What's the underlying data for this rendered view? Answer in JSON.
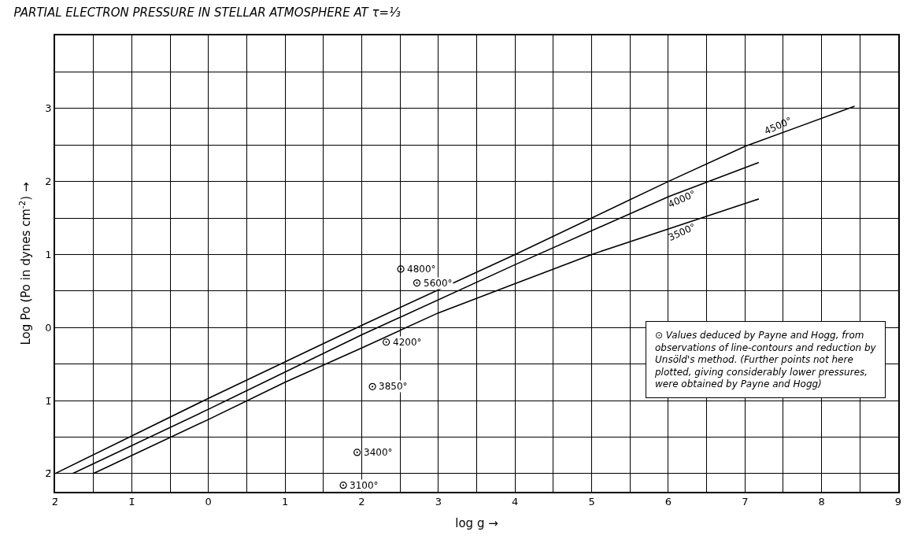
{
  "chart_data": {
    "type": "line",
    "title": "PARTIAL ELECTRON PRESSURE IN STELLAR ATMOSPHERE AT τ=⅓",
    "xlabel": "log g →",
    "ylabel": "Log Po (Po in dynes cm$^{-2}$) →",
    "annotations": [
      "⊙ Values deduced by Payne and Hogg, from observations of line-contours and reduction by Unsöld's method. (Further points not here plotted, giving considerably lower pressures, were obtained by Payne and Hogg)"
    ],
    "xlim": [
      -2,
      9
    ],
    "ylim": [
      -2.25,
      4
    ],
    "xticks": [
      {
        "value": -2,
        "label": "2̄"
      },
      {
        "value": -1.5,
        "label": null
      },
      {
        "value": -1,
        "label": "1̄"
      },
      {
        "value": -0.5,
        "label": null
      },
      0,
      {
        "value": 0.5,
        "label": null
      },
      1,
      {
        "value": 1.5,
        "label": null
      },
      2,
      {
        "value": 2.5,
        "label": null
      },
      3,
      {
        "value": 3.5,
        "label": null
      },
      4,
      {
        "value": 4.5,
        "label": null
      },
      5,
      {
        "value": 5.5,
        "label": null
      },
      6,
      {
        "value": 6.5,
        "label": null
      },
      7,
      {
        "value": 7.5,
        "label": null
      },
      8,
      {
        "value": 8.5,
        "label": null
      },
      9
    ],
    "yticks": [
      {
        "value": -2,
        "label": "2̄"
      },
      {
        "value": -1.5,
        "label": null
      },
      {
        "value": -1,
        "label": "1̄"
      },
      {
        "value": -0.5,
        "label": null
      },
      0,
      {
        "value": 0.5,
        "label": null
      },
      1,
      {
        "value": 1.5,
        "label": null
      },
      2,
      {
        "value": 2.5,
        "label": null
      },
      3,
      {
        "value": 3.5,
        "label": null
      },
      {
        "value": 4,
        "label": null
      }
    ],
    "grid": true,
    "series": [
      {
        "name": "4500°",
        "color": "#000000",
        "x": [
          -2,
          0,
          2,
          4,
          6,
          7,
          8.43
        ],
        "values": [
          -2,
          -0.97,
          0.03,
          1.0,
          2.0,
          2.48,
          3.03
        ]
      },
      {
        "name": "4000°",
        "color": "#000000",
        "x": [
          -1.77,
          0,
          2,
          4,
          6,
          7.18
        ],
        "values": [
          -2,
          -1.12,
          -0.1,
          0.86,
          1.79,
          2.26
        ]
      },
      {
        "name": "3500°",
        "color": "#000000",
        "x": [
          -1.5,
          0,
          1,
          2,
          3,
          4,
          5,
          6,
          7.18
        ],
        "values": [
          -2,
          -1.26,
          -0.75,
          -0.28,
          0.2,
          0.6,
          1.0,
          1.35,
          1.76
        ]
      },
      {
        "name": "4800°",
        "type": "scatter",
        "marker": "circle",
        "color": "#000000",
        "x": [
          2.51
        ],
        "values": [
          0.8
        ]
      },
      {
        "name": "5600°",
        "type": "scatter",
        "marker": "circle",
        "color": "#000000",
        "x": [
          2.72
        ],
        "values": [
          0.61
        ]
      },
      {
        "name": "4200°",
        "type": "scatter",
        "marker": "circle",
        "color": "#000000",
        "x": [
          2.32
        ],
        "values": [
          -0.2
        ]
      },
      {
        "name": "3850°",
        "type": "scatter",
        "marker": "circle",
        "color": "#000000",
        "x": [
          2.14
        ],
        "values": [
          -0.81
        ]
      },
      {
        "name": "3400°",
        "type": "scatter",
        "marker": "circle",
        "color": "#000000",
        "x": [
          1.94
        ],
        "values": [
          -1.71
        ]
      },
      {
        "name": "3100°",
        "type": "scatter",
        "marker": "circle",
        "color": "#000000",
        "x": [
          1.76
        ],
        "values": [
          -2.16
        ]
      }
    ]
  }
}
